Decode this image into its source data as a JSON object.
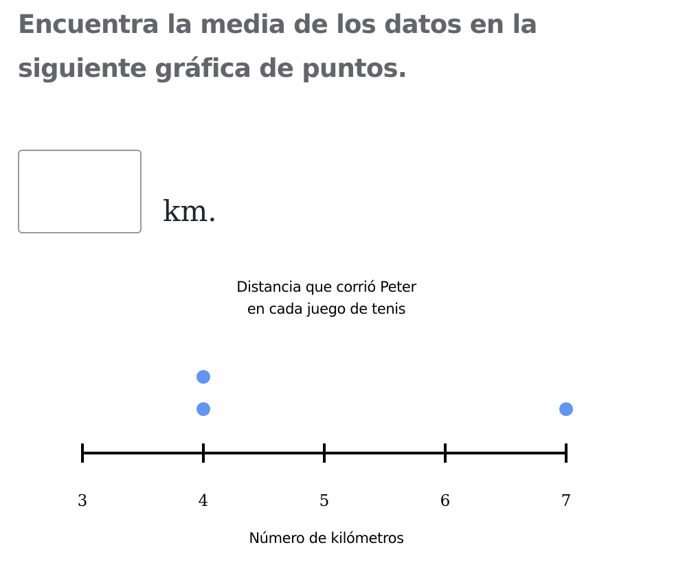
{
  "question": {
    "text": "Encuentra la media de los datos en la siguiente gráfica de puntos."
  },
  "answer": {
    "value": "",
    "placeholder": "",
    "unit": "km."
  },
  "colors": {
    "dot": "#6495ed",
    "axis": "#000000",
    "question_text": "#626569"
  },
  "chart_data": {
    "type": "scatter",
    "subtype": "dot-plot",
    "title_lines": [
      "Distancia que corrió Peter",
      "en cada juego de tenis"
    ],
    "xlabel": "Número de kilómetros",
    "xlim": [
      3,
      7
    ],
    "ticks": [
      3,
      4,
      5,
      6,
      7
    ],
    "tick_labels": [
      "3",
      "4",
      "5",
      "6",
      "7"
    ],
    "points": [
      {
        "x": 4,
        "count": 2
      },
      {
        "x": 7,
        "count": 1
      }
    ],
    "grid": false
  }
}
